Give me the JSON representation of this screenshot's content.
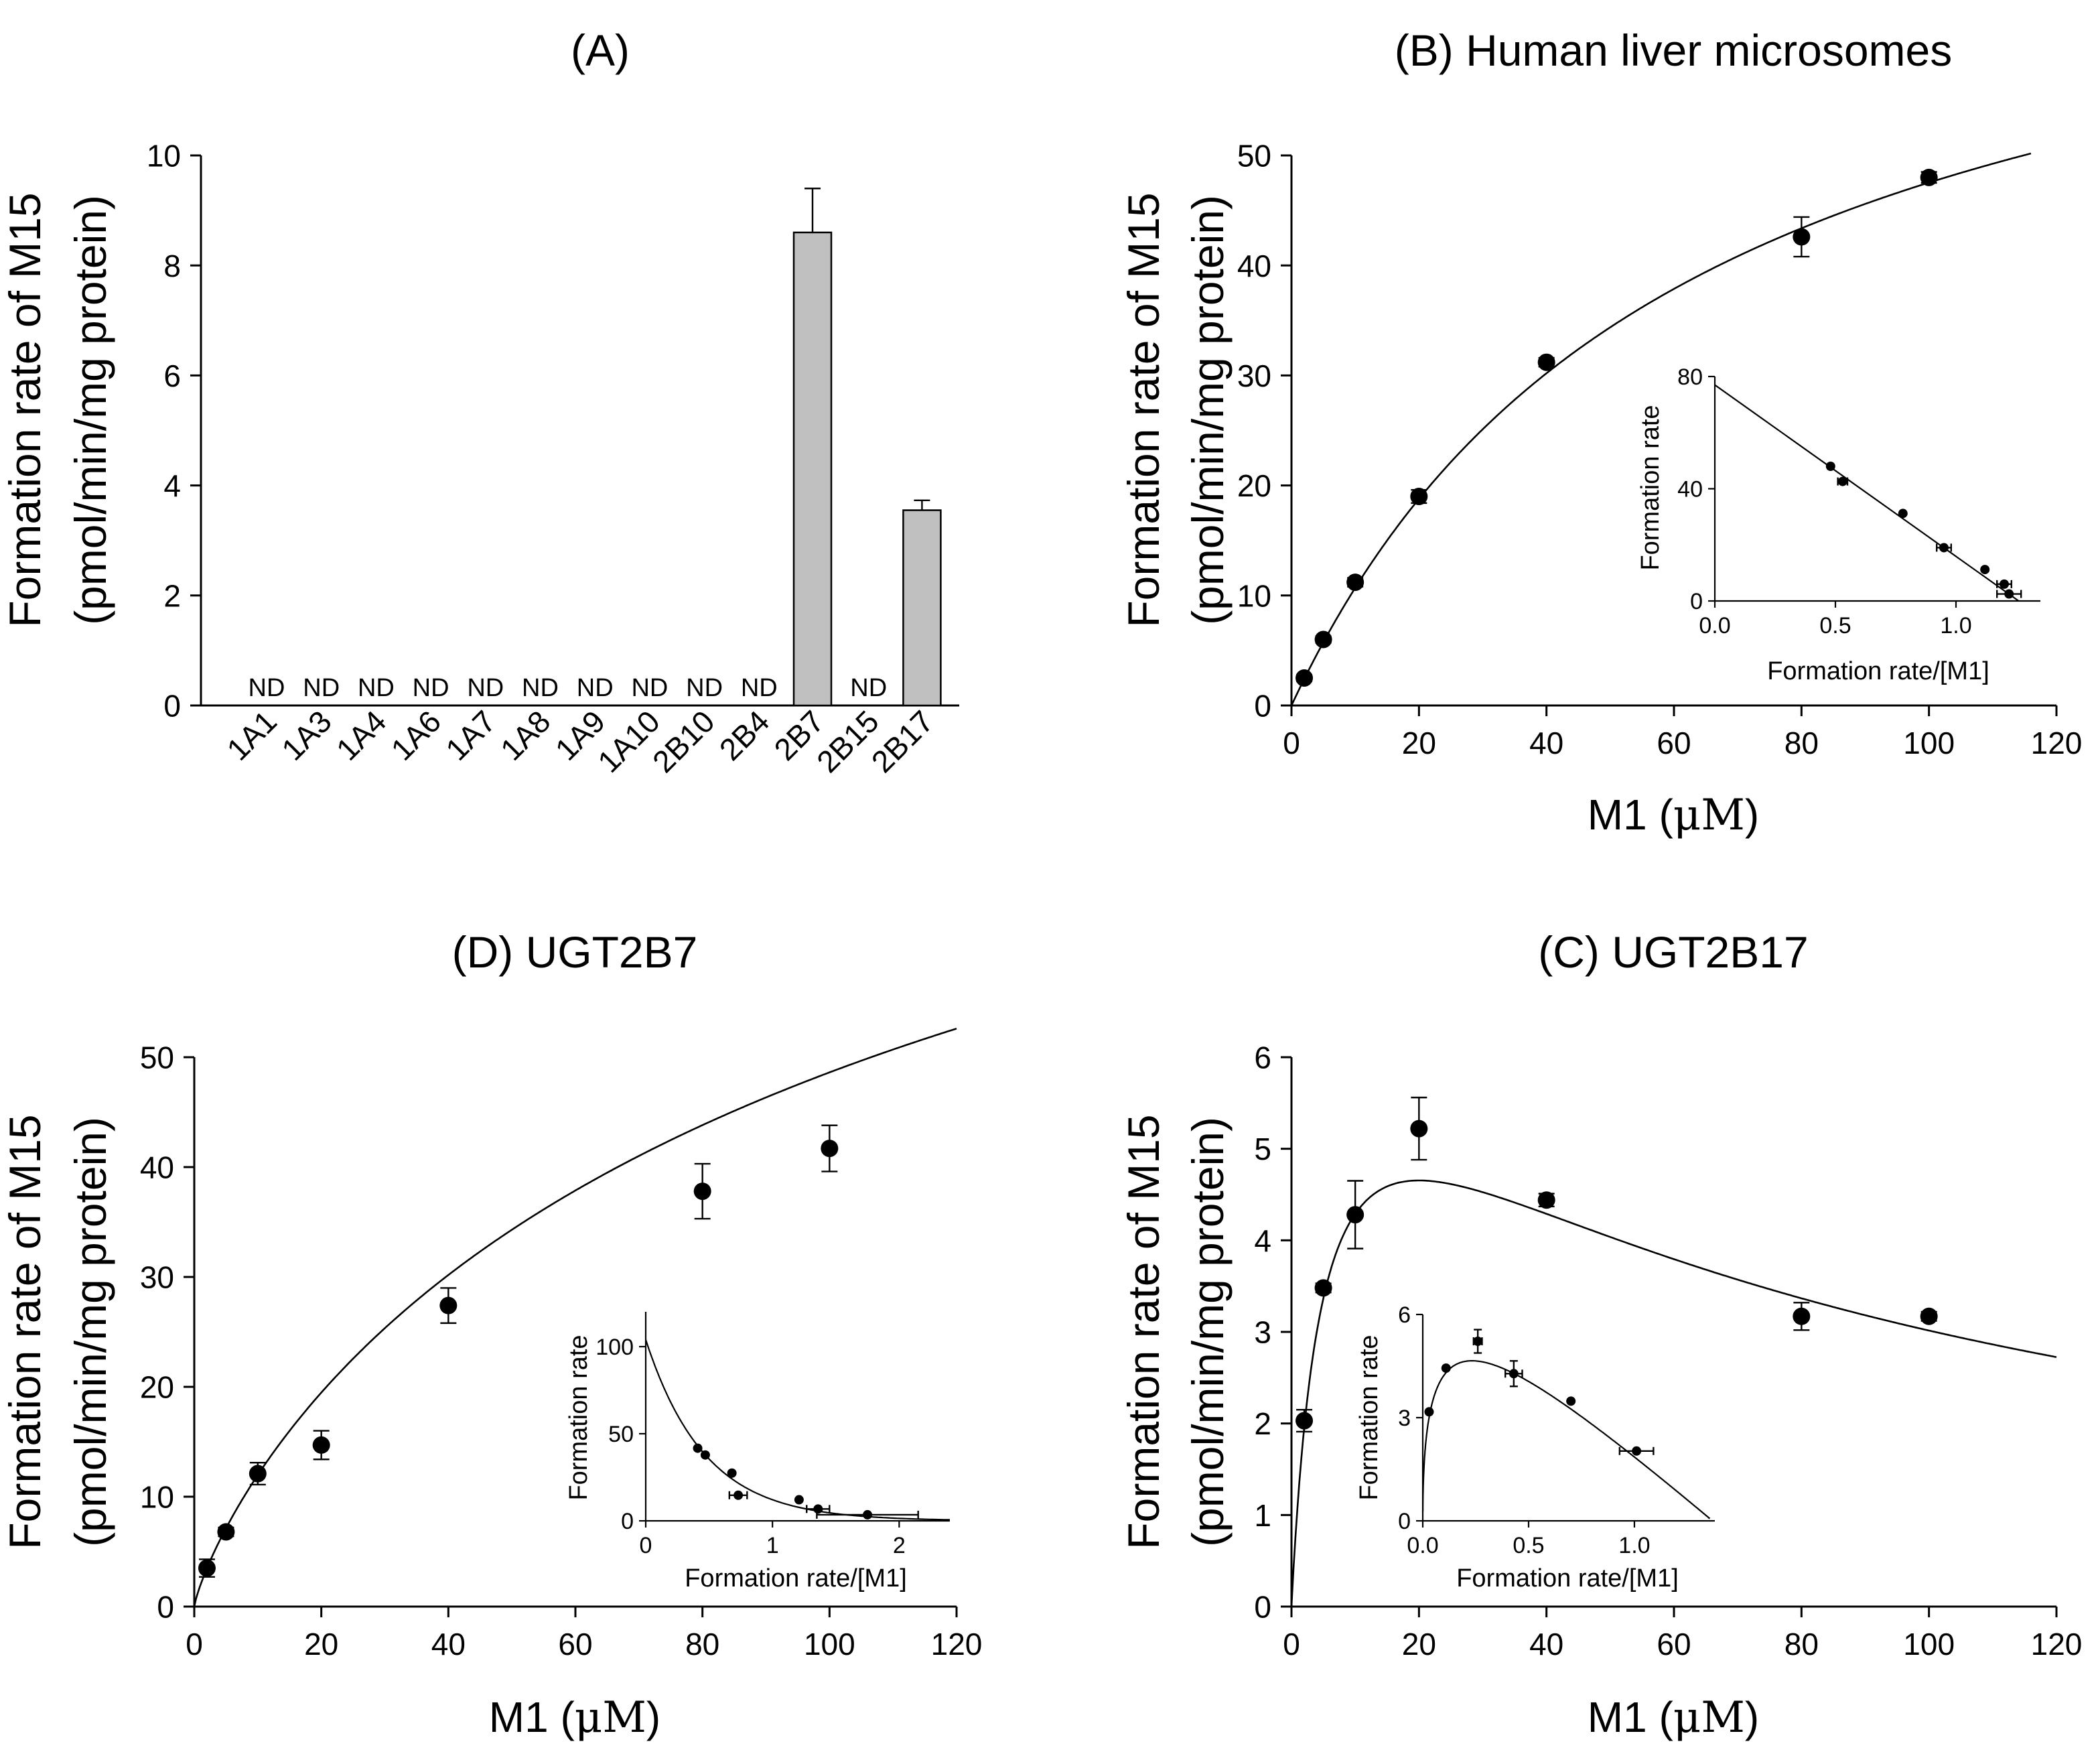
{
  "chart_data": [
    {
      "id": "A",
      "type": "bar",
      "title": "(A)",
      "ylabel_line1": "Formation rate of M15",
      "ylabel_line2": "(pmol/min/mg protein)",
      "ylim": [
        0,
        10
      ],
      "yticks": [
        0,
        2,
        4,
        6,
        8,
        10
      ],
      "nd_label": "ND",
      "categories": [
        "1A1",
        "1A3",
        "1A4",
        "1A6",
        "1A7",
        "1A8",
        "1A9",
        "1A10",
        "2B10",
        "2B4",
        "2B7",
        "2B15",
        "2B17"
      ],
      "values": [
        null,
        null,
        null,
        null,
        null,
        null,
        null,
        null,
        null,
        null,
        8.6,
        null,
        3.55
      ],
      "errors": [
        null,
        null,
        null,
        null,
        null,
        null,
        null,
        null,
        null,
        null,
        0.8,
        null,
        0.18
      ]
    },
    {
      "id": "B",
      "type": "scatter",
      "title": "(B) Human liver microsomes",
      "ylabel_line1": "Formation rate of M15",
      "ylabel_line2": "(pmol/min/mg protein)",
      "xlabel_prefix": "M1 (",
      "xlabel_unit": "μM",
      "xlabel_suffix": ")",
      "xlim": [
        0,
        120
      ],
      "xticks": [
        0,
        20,
        40,
        60,
        80,
        100,
        120
      ],
      "ylim": [
        0,
        50
      ],
      "yticks": [
        0,
        10,
        20,
        30,
        40,
        50
      ],
      "points": [
        {
          "x": 2,
          "y": 2.5,
          "err": 0.3
        },
        {
          "x": 5,
          "y": 6.0,
          "err": 0.3
        },
        {
          "x": 10,
          "y": 11.2,
          "err": 0.4
        },
        {
          "x": 20,
          "y": 19.0,
          "err": 0.6
        },
        {
          "x": 40,
          "y": 31.2,
          "err": 0.4
        },
        {
          "x": 80,
          "y": 42.6,
          "err": 1.8
        },
        {
          "x": 100,
          "y": 48.0,
          "err": 0.5
        }
      ],
      "fit": {
        "model": "michaelis-menten",
        "vmax": 77,
        "km": 62,
        "x_end": 116
      },
      "inset": {
        "type": "scatter",
        "xlabel": "Formation rate/[M1]",
        "ylabel": "Formation rate",
        "xlim": [
          0,
          1.35
        ],
        "xticks": [
          0.0,
          0.5,
          1.0
        ],
        "xtick_labels": [
          "0.0",
          "0.5",
          "1.0"
        ],
        "ylim": [
          0,
          80
        ],
        "yticks": [
          0,
          40,
          80
        ],
        "ytick_labels": [
          "0",
          "40",
          "80"
        ],
        "points": [
          {
            "x": 0.48,
            "y": 48.0
          },
          {
            "x": 0.53,
            "y": 42.6,
            "xerr": 0.02
          },
          {
            "x": 0.78,
            "y": 31.2
          },
          {
            "x": 0.95,
            "y": 19.0,
            "xerr": 0.03
          },
          {
            "x": 1.12,
            "y": 11.2
          },
          {
            "x": 1.2,
            "y": 6.0,
            "xerr": 0.03
          },
          {
            "x": 1.22,
            "y": 2.5,
            "xerr": 0.05
          }
        ],
        "fit": {
          "model": "linear",
          "x": [
            0,
            1.26
          ],
          "y": [
            77,
            0
          ]
        }
      }
    },
    {
      "id": "D",
      "type": "scatter",
      "title": "(D) UGT2B7",
      "ylabel_line1": "Formation rate of M15",
      "ylabel_line2": "(pmol/min/mg protein)",
      "xlabel_prefix": "M1 (",
      "xlabel_unit": "μM",
      "xlabel_suffix": ")",
      "xlim": [
        0,
        120
      ],
      "xticks": [
        0,
        20,
        40,
        60,
        80,
        100,
        120
      ],
      "ylim": [
        0,
        50
      ],
      "yticks": [
        0,
        10,
        20,
        30,
        40,
        50
      ],
      "points": [
        {
          "x": 2,
          "y": 3.5,
          "err": 0.8
        },
        {
          "x": 5,
          "y": 6.8,
          "err": 0.4
        },
        {
          "x": 10,
          "y": 12.1,
          "err": 1.0
        },
        {
          "x": 20,
          "y": 14.7,
          "err": 1.3
        },
        {
          "x": 40,
          "y": 27.4,
          "err": 1.6
        },
        {
          "x": 80,
          "y": 37.8,
          "err": 2.5
        },
        {
          "x": 100,
          "y": 41.7,
          "err": 2.1
        }
      ],
      "fit": {
        "model": "hill",
        "vmax": 107,
        "s50": 125,
        "n": 0.82,
        "x_end": 120
      },
      "inset": {
        "type": "scatter",
        "xlabel": "Formation rate/[M1]",
        "ylabel": "Formation rate",
        "xlim": [
          0,
          2.4
        ],
        "xticks": [
          0,
          1,
          2
        ],
        "xtick_labels": [
          "0",
          "1",
          "2"
        ],
        "ylim": [
          0,
          120
        ],
        "yticks": [
          0,
          50,
          100
        ],
        "ytick_labels": [
          "0",
          "50",
          "100"
        ],
        "points": [
          {
            "x": 0.41,
            "y": 41.7
          },
          {
            "x": 0.47,
            "y": 37.8
          },
          {
            "x": 0.68,
            "y": 27.4
          },
          {
            "x": 0.73,
            "y": 14.7,
            "xerr": 0.07
          },
          {
            "x": 1.21,
            "y": 12.1
          },
          {
            "x": 1.36,
            "y": 6.8,
            "xerr": 0.09
          },
          {
            "x": 1.75,
            "y": 3.5,
            "xerr": 0.4
          }
        ],
        "fit": {
          "model": "decay",
          "y0": 104,
          "k": 2.15,
          "x_end": 2.4
        }
      }
    },
    {
      "id": "C",
      "type": "scatter",
      "title": "(C) UGT2B17",
      "ylabel_line1": "Formation rate of M15",
      "ylabel_line2": "(pmol/min/mg protein)",
      "xlabel_prefix": "M1 (",
      "xlabel_unit": "μM",
      "xlabel_suffix": ")",
      "xlim": [
        0,
        120
      ],
      "xticks": [
        0,
        20,
        40,
        60,
        80,
        100,
        120
      ],
      "ylim": [
        0,
        6
      ],
      "yticks": [
        0,
        1,
        2,
        3,
        4,
        5,
        6
      ],
      "points": [
        {
          "x": 2,
          "y": 2.03,
          "err": 0.12
        },
        {
          "x": 5,
          "y": 3.48,
          "err": 0.05
        },
        {
          "x": 10,
          "y": 4.28,
          "err": 0.37
        },
        {
          "x": 20,
          "y": 5.22,
          "err": 0.34
        },
        {
          "x": 40,
          "y": 4.44,
          "err": 0.07
        },
        {
          "x": 80,
          "y": 3.17,
          "err": 0.15
        },
        {
          "x": 100,
          "y": 3.17,
          "err": 0.05
        }
      ],
      "fit": {
        "model": "substrate-inhibition",
        "vmax": 7.05,
        "km": 5.15,
        "ki": 77.7,
        "x_end": 120
      },
      "inset": {
        "type": "scatter",
        "xlabel": "Formation rate/[M1]",
        "ylabel": "Formation rate",
        "xlim": [
          0,
          1.38
        ],
        "xticks": [
          0.0,
          0.5,
          1.0
        ],
        "xtick_labels": [
          "0.0",
          "0.5",
          "1.0"
        ],
        "ylim": [
          0,
          6
        ],
        "yticks": [
          0,
          3,
          6
        ],
        "ytick_labels": [
          "0",
          "3",
          "6"
        ],
        "points": [
          {
            "x": 0.03,
            "y": 3.17
          },
          {
            "x": 0.11,
            "y": 4.44
          },
          {
            "x": 0.26,
            "y": 5.22,
            "yerr": 0.34,
            "xerr": 0.02
          },
          {
            "x": 0.43,
            "y": 4.28,
            "yerr": 0.37,
            "xerr": 0.04
          },
          {
            "x": 0.7,
            "y": 3.48
          },
          {
            "x": 1.01,
            "y": 2.03,
            "xerr": 0.08
          }
        ],
        "fit": {
          "model": "substrate-inhibition-eh",
          "vmax": 7.05,
          "km": 5.15,
          "ki": 77.7
        }
      }
    }
  ]
}
